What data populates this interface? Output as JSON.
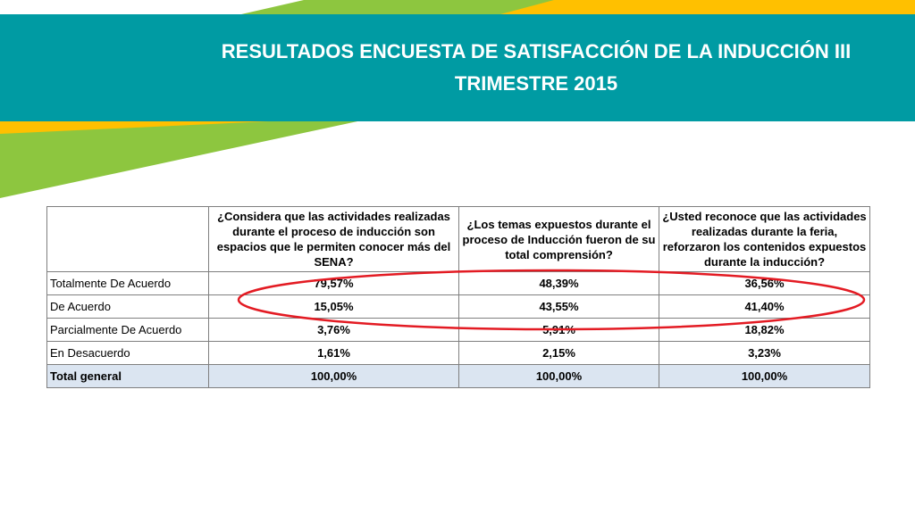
{
  "title": "RESULTADOS ENCUESTA DE SATISFACCIÓN DE LA INDUCCIÓN III TRIMESTRE 2015",
  "colors": {
    "band": "#009ba3",
    "yellow": "#ffc000",
    "green": "#8dc63f",
    "highlight": "#e31b23",
    "total_row": "#dbe5f1"
  },
  "table": {
    "headers": [
      "",
      "¿Considera que las actividades realizadas durante el proceso de inducción son espacios que le permiten conocer más del SENA?",
      "¿Los temas expuestos durante el proceso de Inducción fueron de su total comprensión?",
      "¿Usted reconoce que las actividades realizadas durante la feria, reforzaron los contenidos expuestos durante la inducción?"
    ],
    "rows": [
      {
        "label": "Totalmente De Acuerdo",
        "values": [
          "79,57%",
          "48,39%",
          "36,56%"
        ]
      },
      {
        "label": "De Acuerdo",
        "values": [
          "15,05%",
          "43,55%",
          "41,40%"
        ]
      },
      {
        "label": "Parcialmente De Acuerdo",
        "values": [
          "3,76%",
          "5,91%",
          "18,82%"
        ]
      },
      {
        "label": "En Desacuerdo",
        "values": [
          "1,61%",
          "2,15%",
          "3,23%"
        ]
      },
      {
        "label": "Total general",
        "values": [
          "100,00%",
          "100,00%",
          "100,00%"
        ]
      }
    ]
  }
}
